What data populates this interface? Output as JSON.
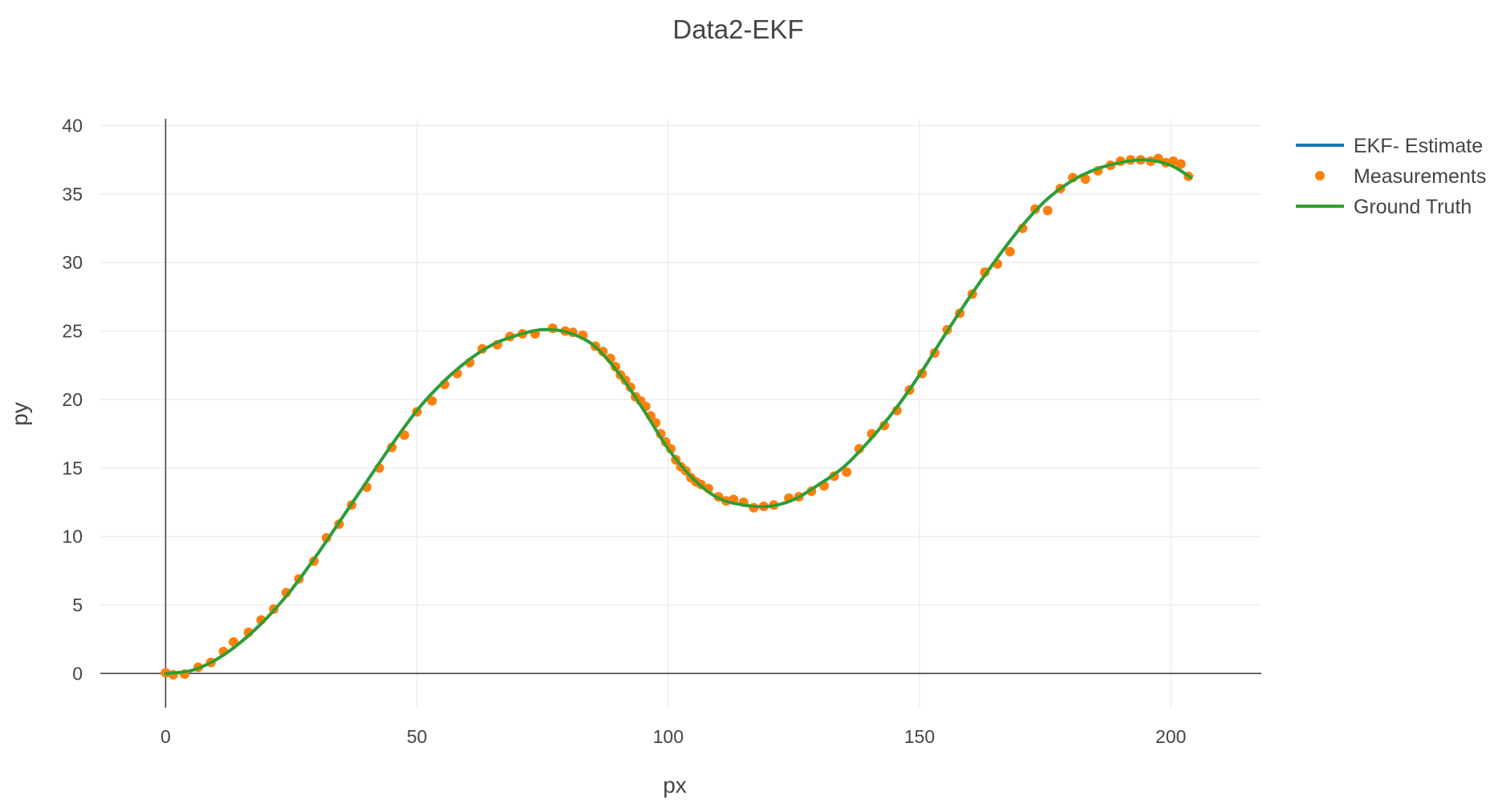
{
  "chart_data": {
    "type": "line",
    "title": "Data2-EKF",
    "xlabel": "px",
    "ylabel": "py",
    "xlim": [
      -13,
      218
    ],
    "ylim": [
      -2.5,
      40.5
    ],
    "xticks": [
      0,
      50,
      100,
      150,
      200
    ],
    "yticks": [
      0,
      5,
      10,
      15,
      20,
      25,
      30,
      35,
      40
    ],
    "grid": true,
    "legend_position": "top-right",
    "colors": {
      "estimate": "#1f77b4",
      "measurements": "#ff7f0e",
      "ground_truth": "#2ca02c"
    },
    "series": [
      {
        "name": "EKF- Estimate",
        "mode": "lines",
        "color": "#1f77b4",
        "x": [
          0,
          5,
          10,
          15,
          20,
          25,
          30,
          35,
          40,
          45,
          50,
          55,
          60,
          65,
          70,
          75,
          80,
          85,
          90,
          95,
          100,
          105,
          110,
          115,
          120,
          125,
          130,
          135,
          140,
          145,
          150,
          155,
          160,
          165,
          170,
          175,
          180,
          185,
          190,
          195,
          200,
          204
        ],
        "y": [
          0,
          0.2,
          1.0,
          2.3,
          4.0,
          6.1,
          8.6,
          11.3,
          14.0,
          16.7,
          19.2,
          21.2,
          22.8,
          24.0,
          24.7,
          25.1,
          24.9,
          24.0,
          22.0,
          19.3,
          16.4,
          14.2,
          12.8,
          12.3,
          12.2,
          12.7,
          13.8,
          15.1,
          17.0,
          19.2,
          21.8,
          24.7,
          27.5,
          30.1,
          32.5,
          34.5,
          35.9,
          36.8,
          37.3,
          37.5,
          37.1,
          36.2
        ]
      },
      {
        "name": "Measurements",
        "mode": "markers",
        "color": "#ff7f0e",
        "x": [
          0,
          1.5,
          3.8,
          6.5,
          9,
          11.5,
          13.5,
          16.5,
          19,
          21.5,
          24,
          26.5,
          29.5,
          32,
          34.5,
          37,
          40,
          42.5,
          45,
          47.5,
          50,
          53,
          55.5,
          58,
          60.5,
          63,
          66,
          68.5,
          71,
          73.5,
          77,
          79.5,
          81,
          83,
          85.5,
          87,
          88.5,
          89.5,
          90.5,
          91.5,
          92.5,
          93.5,
          94.5,
          95.5,
          96.5,
          97.5,
          98.5,
          99.5,
          100.5,
          101.5,
          102.5,
          103.5,
          104.5,
          105.5,
          106.5,
          108,
          110,
          111.5,
          113,
          115,
          117,
          119,
          121,
          124,
          126,
          128.5,
          131,
          133,
          135.5,
          138,
          140.5,
          143,
          145.5,
          148,
          150.5,
          153,
          155.5,
          158,
          160.5,
          163,
          165.5,
          168,
          170.5,
          173,
          175.5,
          178,
          180.5,
          183,
          185.5,
          188,
          190,
          192,
          194,
          196,
          197.5,
          199,
          200.5,
          202,
          203.5
        ],
        "y": [
          0.05,
          -0.1,
          -0.05,
          0.45,
          0.8,
          1.6,
          2.3,
          3.0,
          3.9,
          4.7,
          5.9,
          6.9,
          8.2,
          9.9,
          10.9,
          12.3,
          13.6,
          15.0,
          16.5,
          17.4,
          19.1,
          19.9,
          21.1,
          21.9,
          22.7,
          23.7,
          24.0,
          24.6,
          24.8,
          24.8,
          25.2,
          25.0,
          24.9,
          24.7,
          23.9,
          23.5,
          23.0,
          22.4,
          21.8,
          21.4,
          20.9,
          20.2,
          19.9,
          19.5,
          18.8,
          18.3,
          17.5,
          16.9,
          16.4,
          15.6,
          15.1,
          14.8,
          14.3,
          14.0,
          13.8,
          13.5,
          12.9,
          12.6,
          12.7,
          12.5,
          12.1,
          12.2,
          12.3,
          12.8,
          12.9,
          13.3,
          13.7,
          14.4,
          14.7,
          16.4,
          17.5,
          18.1,
          19.2,
          20.7,
          21.9,
          23.4,
          25.1,
          26.3,
          27.7,
          29.3,
          29.9,
          30.8,
          32.5,
          33.9,
          33.8,
          35.4,
          36.2,
          36.1,
          36.7,
          37.1,
          37.4,
          37.5,
          37.5,
          37.4,
          37.6,
          37.3,
          37.4,
          37.2,
          36.3
        ]
      },
      {
        "name": "Ground Truth",
        "mode": "lines",
        "color": "#2ca02c",
        "x": [
          0,
          5,
          10,
          15,
          20,
          25,
          30,
          35,
          40,
          45,
          50,
          55,
          60,
          65,
          70,
          75,
          80,
          85,
          90,
          95,
          100,
          105,
          110,
          115,
          120,
          125,
          130,
          135,
          140,
          145,
          150,
          155,
          160,
          165,
          170,
          175,
          180,
          185,
          190,
          195,
          200,
          204
        ],
        "y": [
          0,
          0.2,
          1.0,
          2.3,
          4.0,
          6.1,
          8.6,
          11.3,
          14.0,
          16.7,
          19.2,
          21.2,
          22.8,
          24.0,
          24.7,
          25.1,
          24.9,
          24.0,
          22.0,
          19.3,
          16.4,
          14.2,
          12.8,
          12.3,
          12.2,
          12.7,
          13.8,
          15.1,
          17.0,
          19.2,
          21.8,
          24.7,
          27.5,
          30.1,
          32.5,
          34.5,
          35.9,
          36.8,
          37.3,
          37.5,
          37.1,
          36.2
        ]
      }
    ]
  }
}
